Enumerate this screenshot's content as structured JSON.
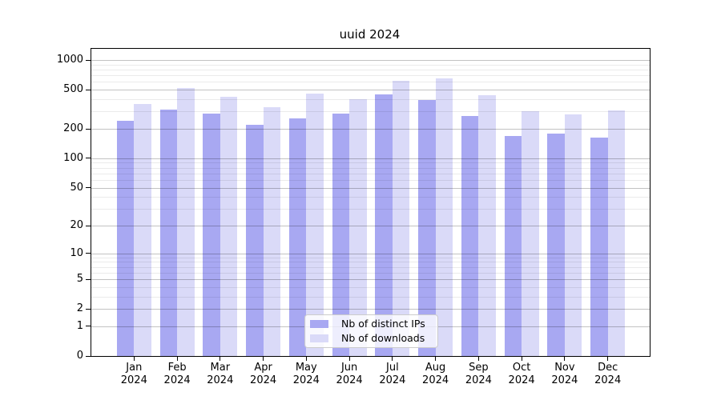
{
  "figure": {
    "background": "#ffffff"
  },
  "chart_data": {
    "type": "bar",
    "title": "uuid 2024",
    "yscale": "log1p",
    "ylim": [
      0,
      1300
    ],
    "yticks": [
      0,
      1,
      2,
      5,
      10,
      20,
      50,
      100,
      200,
      500,
      1000
    ],
    "yticks_minor": [
      3,
      4,
      6,
      7,
      8,
      9,
      30,
      40,
      60,
      70,
      80,
      90,
      300,
      400,
      600,
      700,
      800,
      900
    ],
    "grid": "on",
    "categories": [
      "Jan",
      "Feb",
      "Mar",
      "Apr",
      "May",
      "Jun",
      "Jul",
      "Aug",
      "Sep",
      "Oct",
      "Nov",
      "Dec"
    ],
    "category_year": "2024",
    "legend_position": "lower center",
    "series": [
      {
        "name": "Nb of distinct IPs",
        "color": "#a8a8f2",
        "values": [
          240,
          315,
          285,
          220,
          255,
          285,
          445,
          390,
          270,
          170,
          180,
          163
        ]
      },
      {
        "name": "Nb of downloads",
        "color": "#dadaf8",
        "values": [
          355,
          520,
          425,
          330,
          460,
          400,
          615,
          655,
          440,
          300,
          280,
          310
        ]
      }
    ]
  },
  "colors": {
    "axis": "#000000",
    "grid_major": "rgba(0,0,0,0.24)",
    "grid_minor": "rgba(0,0,0,0.08)",
    "legend_border": "#cccccc",
    "legend_background": "rgba(255,255,255,0.8)"
  }
}
